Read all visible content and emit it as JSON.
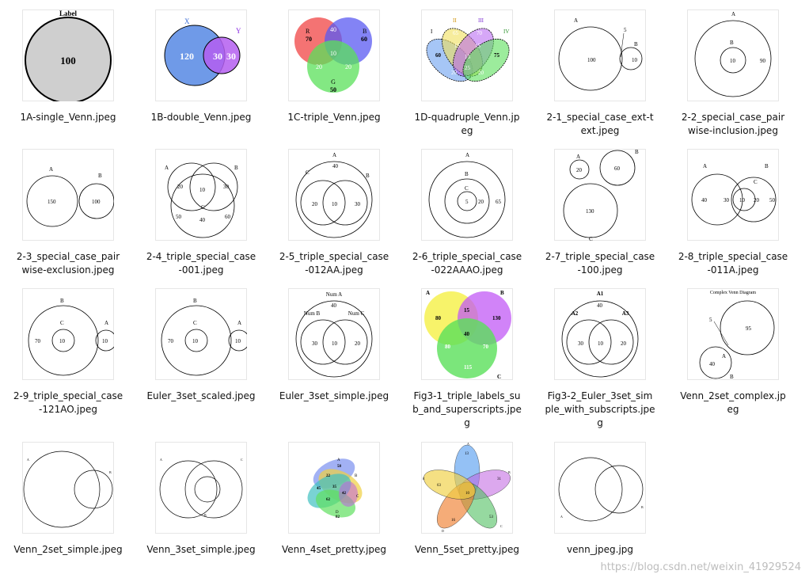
{
  "files": [
    {
      "name": "1A-single_Venn.jpeg",
      "thumb": {
        "title": "Label",
        "v": [
          "100"
        ]
      }
    },
    {
      "name": "1B-double_Venn.jpeg",
      "thumb": {
        "labels": [
          "X",
          "Y"
        ],
        "v": [
          "120",
          "30",
          "30"
        ]
      }
    },
    {
      "name": "1C-triple_Venn.jpeg",
      "thumb": {
        "labels": [
          "R",
          "B",
          "G"
        ],
        "v": [
          "70",
          "40",
          "60",
          "10",
          "20",
          "20",
          "50"
        ]
      }
    },
    {
      "name": "1D-quadruple_Venn.jpeg",
      "thumb": {
        "labels": [
          "I",
          "II",
          "III",
          "IV"
        ],
        "v": [
          "60",
          "65",
          "70",
          "75",
          "15",
          "15",
          "15",
          "25",
          "20",
          "20",
          "5"
        ]
      }
    },
    {
      "name": "2-1_special_case_ext-text.jpeg",
      "thumb": {
        "labels": [
          "A",
          "B"
        ],
        "v": [
          "100",
          "5",
          "10"
        ]
      }
    },
    {
      "name": "2-2_special_case_pairwise-inclusion.jpeg",
      "thumb": {
        "labels": [
          "A",
          "B"
        ],
        "v": [
          "10",
          "90"
        ]
      }
    },
    {
      "name": "2-3_special_case_pairwise-exclusion.jpeg",
      "thumb": {
        "labels": [
          "A",
          "B"
        ],
        "v": [
          "150",
          "100"
        ]
      }
    },
    {
      "name": "2-4_triple_special_case-001.jpeg",
      "thumb": {
        "labels": [
          "A",
          "B",
          "C"
        ],
        "v": [
          "20",
          "10",
          "30",
          "50",
          "40",
          "60"
        ]
      }
    },
    {
      "name": "2-5_triple_special_case-012AA.jpeg",
      "thumb": {
        "labels": [
          "A",
          "B",
          "C"
        ],
        "v": [
          "40",
          "20",
          "10",
          "30"
        ]
      }
    },
    {
      "name": "2-6_triple_special_case-022AAAO.jpeg",
      "thumb": {
        "labels": [
          "A",
          "B",
          "C"
        ],
        "v": [
          "5",
          "20",
          "65"
        ]
      }
    },
    {
      "name": "2-7_triple_special_case-100.jpeg",
      "thumb": {
        "labels": [
          "A",
          "B",
          "C"
        ],
        "v": [
          "20",
          "60",
          "130"
        ]
      }
    },
    {
      "name": "2-8_triple_special_case-011A.jpeg",
      "thumb": {
        "labels": [
          "A",
          "B",
          "C"
        ],
        "v": [
          "40",
          "30",
          "10",
          "20",
          "50"
        ]
      }
    },
    {
      "name": "2-9_triple_special_case-121AO.jpeg",
      "thumb": {
        "labels": [
          "B",
          "C",
          "A"
        ],
        "v": [
          "70",
          "10",
          "10"
        ]
      }
    },
    {
      "name": "Euler_3set_scaled.jpeg",
      "thumb": {
        "labels": [
          "B",
          "C",
          "A"
        ],
        "v": [
          "70",
          "10",
          "10"
        ]
      }
    },
    {
      "name": "Euler_3set_simple.jpeg",
      "thumb": {
        "labels": [
          "Num A",
          "Num B",
          "Num C"
        ],
        "v": [
          "40",
          "30",
          "10",
          "20"
        ]
      }
    },
    {
      "name": "Fig3-1_triple_labels_sub_and_superscripts.jpeg",
      "thumb": {
        "labels": [
          "A",
          "B",
          "C"
        ],
        "v": [
          "80",
          "15",
          "130",
          "40",
          "80",
          "70",
          "115"
        ]
      }
    },
    {
      "name": "Fig3-2_Euler_3set_simple_with_subscripts.jpeg",
      "thumb": {
        "labels": [
          "A1",
          "A2",
          "A3"
        ],
        "v": [
          "40",
          "30",
          "10",
          "20"
        ]
      }
    },
    {
      "name": "Venn_2set_complex.jpeg",
      "thumb": {
        "title": "Complex Venn Diagram",
        "labels": [
          "A",
          "B"
        ],
        "v": [
          "5",
          "95",
          "40"
        ]
      }
    },
    {
      "name": "Venn_2set_simple.jpeg",
      "thumb": {
        "labels": [
          "A",
          "B"
        ],
        "v": [
          "",
          "",
          ""
        ]
      }
    },
    {
      "name": "Venn_3set_simple.jpeg",
      "thumb": {
        "labels": [
          "A",
          "B",
          "C"
        ],
        "v": [
          "",
          "",
          "",
          "",
          ""
        ]
      }
    },
    {
      "name": "Venn_4set_pretty.jpeg",
      "thumb": {
        "labels": [
          "A",
          "B",
          "C",
          "D"
        ],
        "v": [
          "58",
          "22",
          "45",
          "35",
          "42",
          "62",
          "82"
        ]
      }
    },
    {
      "name": "Venn_5set_pretty.jpeg",
      "thumb": {
        "labels": [
          "A",
          "B",
          "C",
          "D",
          "E"
        ],
        "v": [
          "13",
          "31",
          "63",
          "53",
          "16",
          "10"
        ]
      }
    },
    {
      "name": "venn_jpeg.jpg",
      "thumb": {
        "labels": [
          "A",
          "B"
        ],
        "v": [
          "",
          "",
          ""
        ]
      }
    }
  ],
  "watermark": "https://blog.csdn.net/weixin_41929524"
}
